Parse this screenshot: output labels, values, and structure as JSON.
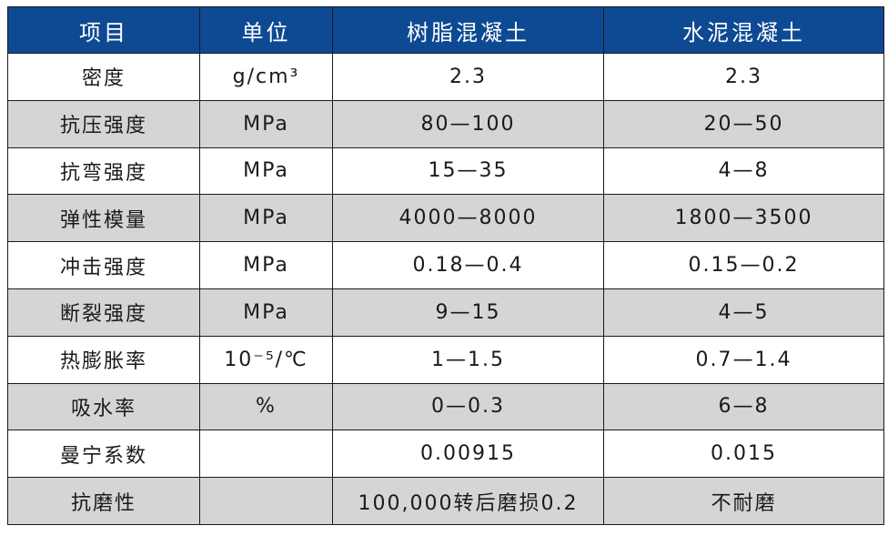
{
  "table": {
    "headers": [
      "项目",
      "单位",
      "树脂混凝土",
      "水泥混凝土"
    ],
    "rows": [
      {
        "property": "密度",
        "unit": "g/cm³",
        "resin": "2.3",
        "cement": "2.3"
      },
      {
        "property": "抗压强度",
        "unit": "MPa",
        "resin": "80—100",
        "cement": "20—50"
      },
      {
        "property": "抗弯强度",
        "unit": "MPa",
        "resin": "15—35",
        "cement": "4—8"
      },
      {
        "property": "弹性模量",
        "unit": "MPa",
        "resin": "4000—8000",
        "cement": "1800—3500"
      },
      {
        "property": "冲击强度",
        "unit": "MPa",
        "resin": "0.18—0.4",
        "cement": "0.15—0.2"
      },
      {
        "property": "断裂强度",
        "unit": "MPa",
        "resin": "9—15",
        "cement": "4—5"
      },
      {
        "property": "热膨胀率",
        "unit": "10⁻⁵/℃",
        "resin": "1—1.5",
        "cement": "0.7—1.4"
      },
      {
        "property": "吸水率",
        "unit": "%",
        "resin": "0—0.3",
        "cement": "6—8"
      },
      {
        "property": "曼宁系数",
        "unit": "",
        "resin": "0.00915",
        "cement": "0.015"
      },
      {
        "property": "抗磨性",
        "unit": "",
        "resin": "100,000转后磨损0.2",
        "cement": "不耐磨"
      }
    ]
  },
  "colors": {
    "header_bg": "#0d4a93",
    "header_text": "#ffffff",
    "row_alt_bg": "#d5d5d5",
    "border": "#1a1a1a"
  }
}
